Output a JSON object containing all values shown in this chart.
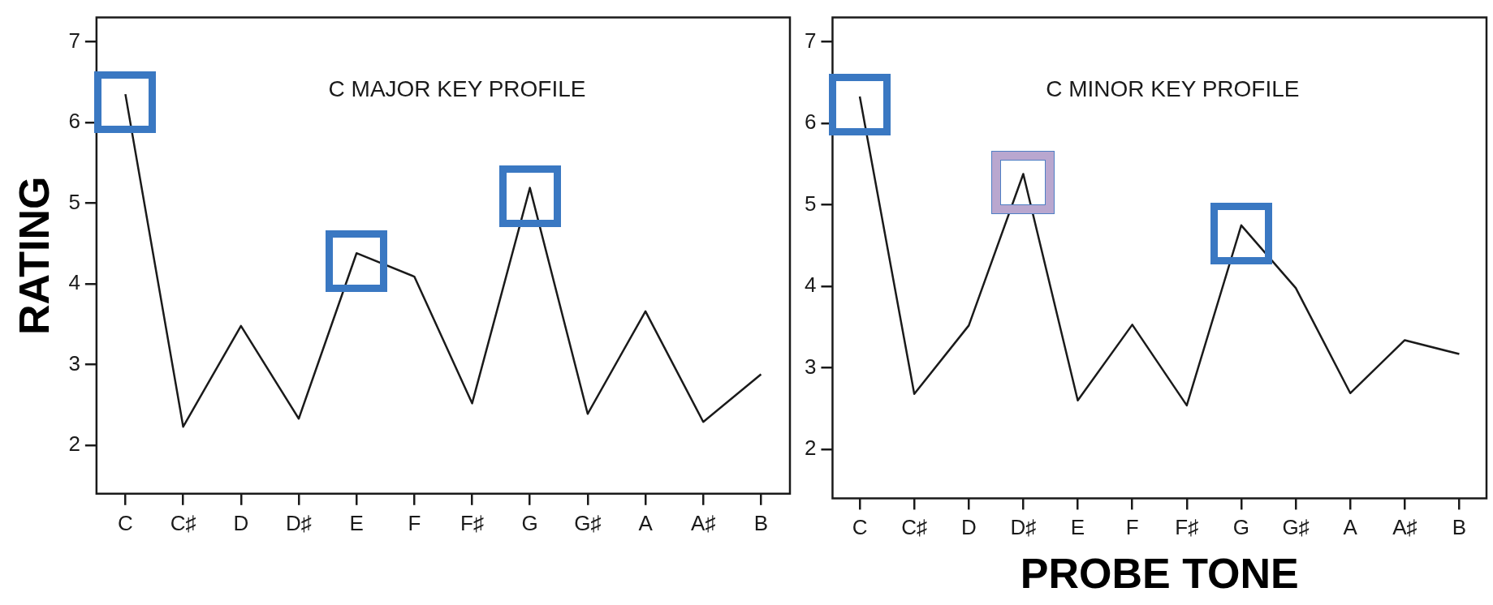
{
  "chart_data": [
    {
      "type": "line",
      "title": "C MAJOR KEY PROFILE",
      "ylabel": "RATING",
      "categories": [
        "C",
        "C♯",
        "D",
        "D♯",
        "E",
        "F",
        "F♯",
        "G",
        "G♯",
        "A",
        "A♯",
        "B"
      ],
      "series": [
        {
          "color": "#1a1a1a",
          "values": [
            6.35,
            2.23,
            3.48,
            2.33,
            4.38,
            4.09,
            2.52,
            5.19,
            2.39,
            3.66,
            2.29,
            2.88
          ]
        }
      ],
      "ylim": [
        1.4,
        7.3
      ],
      "yticks": [
        2,
        3,
        4,
        5,
        6,
        7
      ],
      "grid": false,
      "legend": false,
      "marker": "none"
    },
    {
      "type": "line",
      "title": "C MINOR KEY PROFILE",
      "xlabel": "PROBE TONE",
      "categories": [
        "C",
        "C♯",
        "D",
        "D♯",
        "E",
        "F",
        "F♯",
        "G",
        "G♯",
        "A",
        "A♯",
        "B"
      ],
      "series": [
        {
          "color": "#1a1a1a",
          "values": [
            6.33,
            2.68,
            3.52,
            5.38,
            2.6,
            3.53,
            2.54,
            4.75,
            3.98,
            2.69,
            3.34,
            3.17
          ]
        }
      ],
      "ylim": [
        1.4,
        7.3
      ],
      "yticks": [
        2,
        3,
        4,
        5,
        6,
        7
      ],
      "grid": false,
      "legend": false,
      "marker": "none"
    }
  ]
}
